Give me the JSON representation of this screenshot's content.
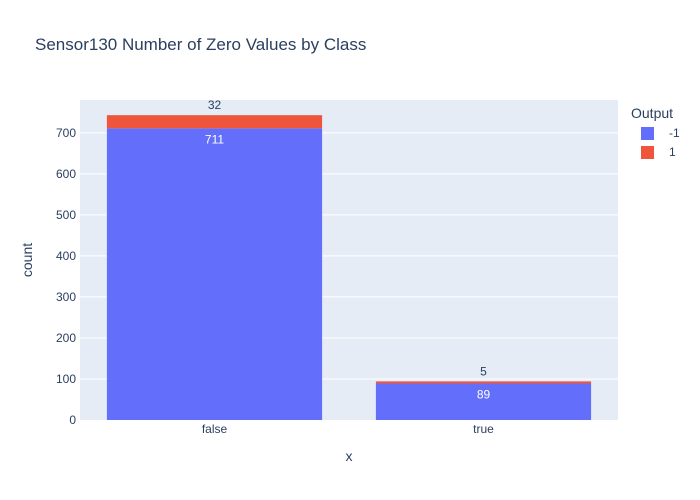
{
  "chart_data": {
    "type": "bar",
    "barmode": "stack",
    "title": "Sensor130 Number of Zero Values by Class",
    "xlabel": "x",
    "ylabel": "count",
    "categories": [
      "false",
      "true"
    ],
    "ylim": [
      0,
      780
    ],
    "yticks": [
      0,
      100,
      200,
      300,
      400,
      500,
      600,
      700
    ],
    "grid": true,
    "legend": {
      "title": "Output",
      "position": "top-right"
    },
    "series": [
      {
        "name": "-1",
        "values": [
          711,
          89
        ],
        "color": "#636efa",
        "label_position": "inside"
      },
      {
        "name": "1",
        "values": [
          32,
          5
        ],
        "color": "#ef553b",
        "label_position": "outside"
      }
    ]
  },
  "colors": {
    "plot_bg": "#e5ecf6",
    "grid": "#ffffff",
    "text": "#2a3f5f"
  }
}
